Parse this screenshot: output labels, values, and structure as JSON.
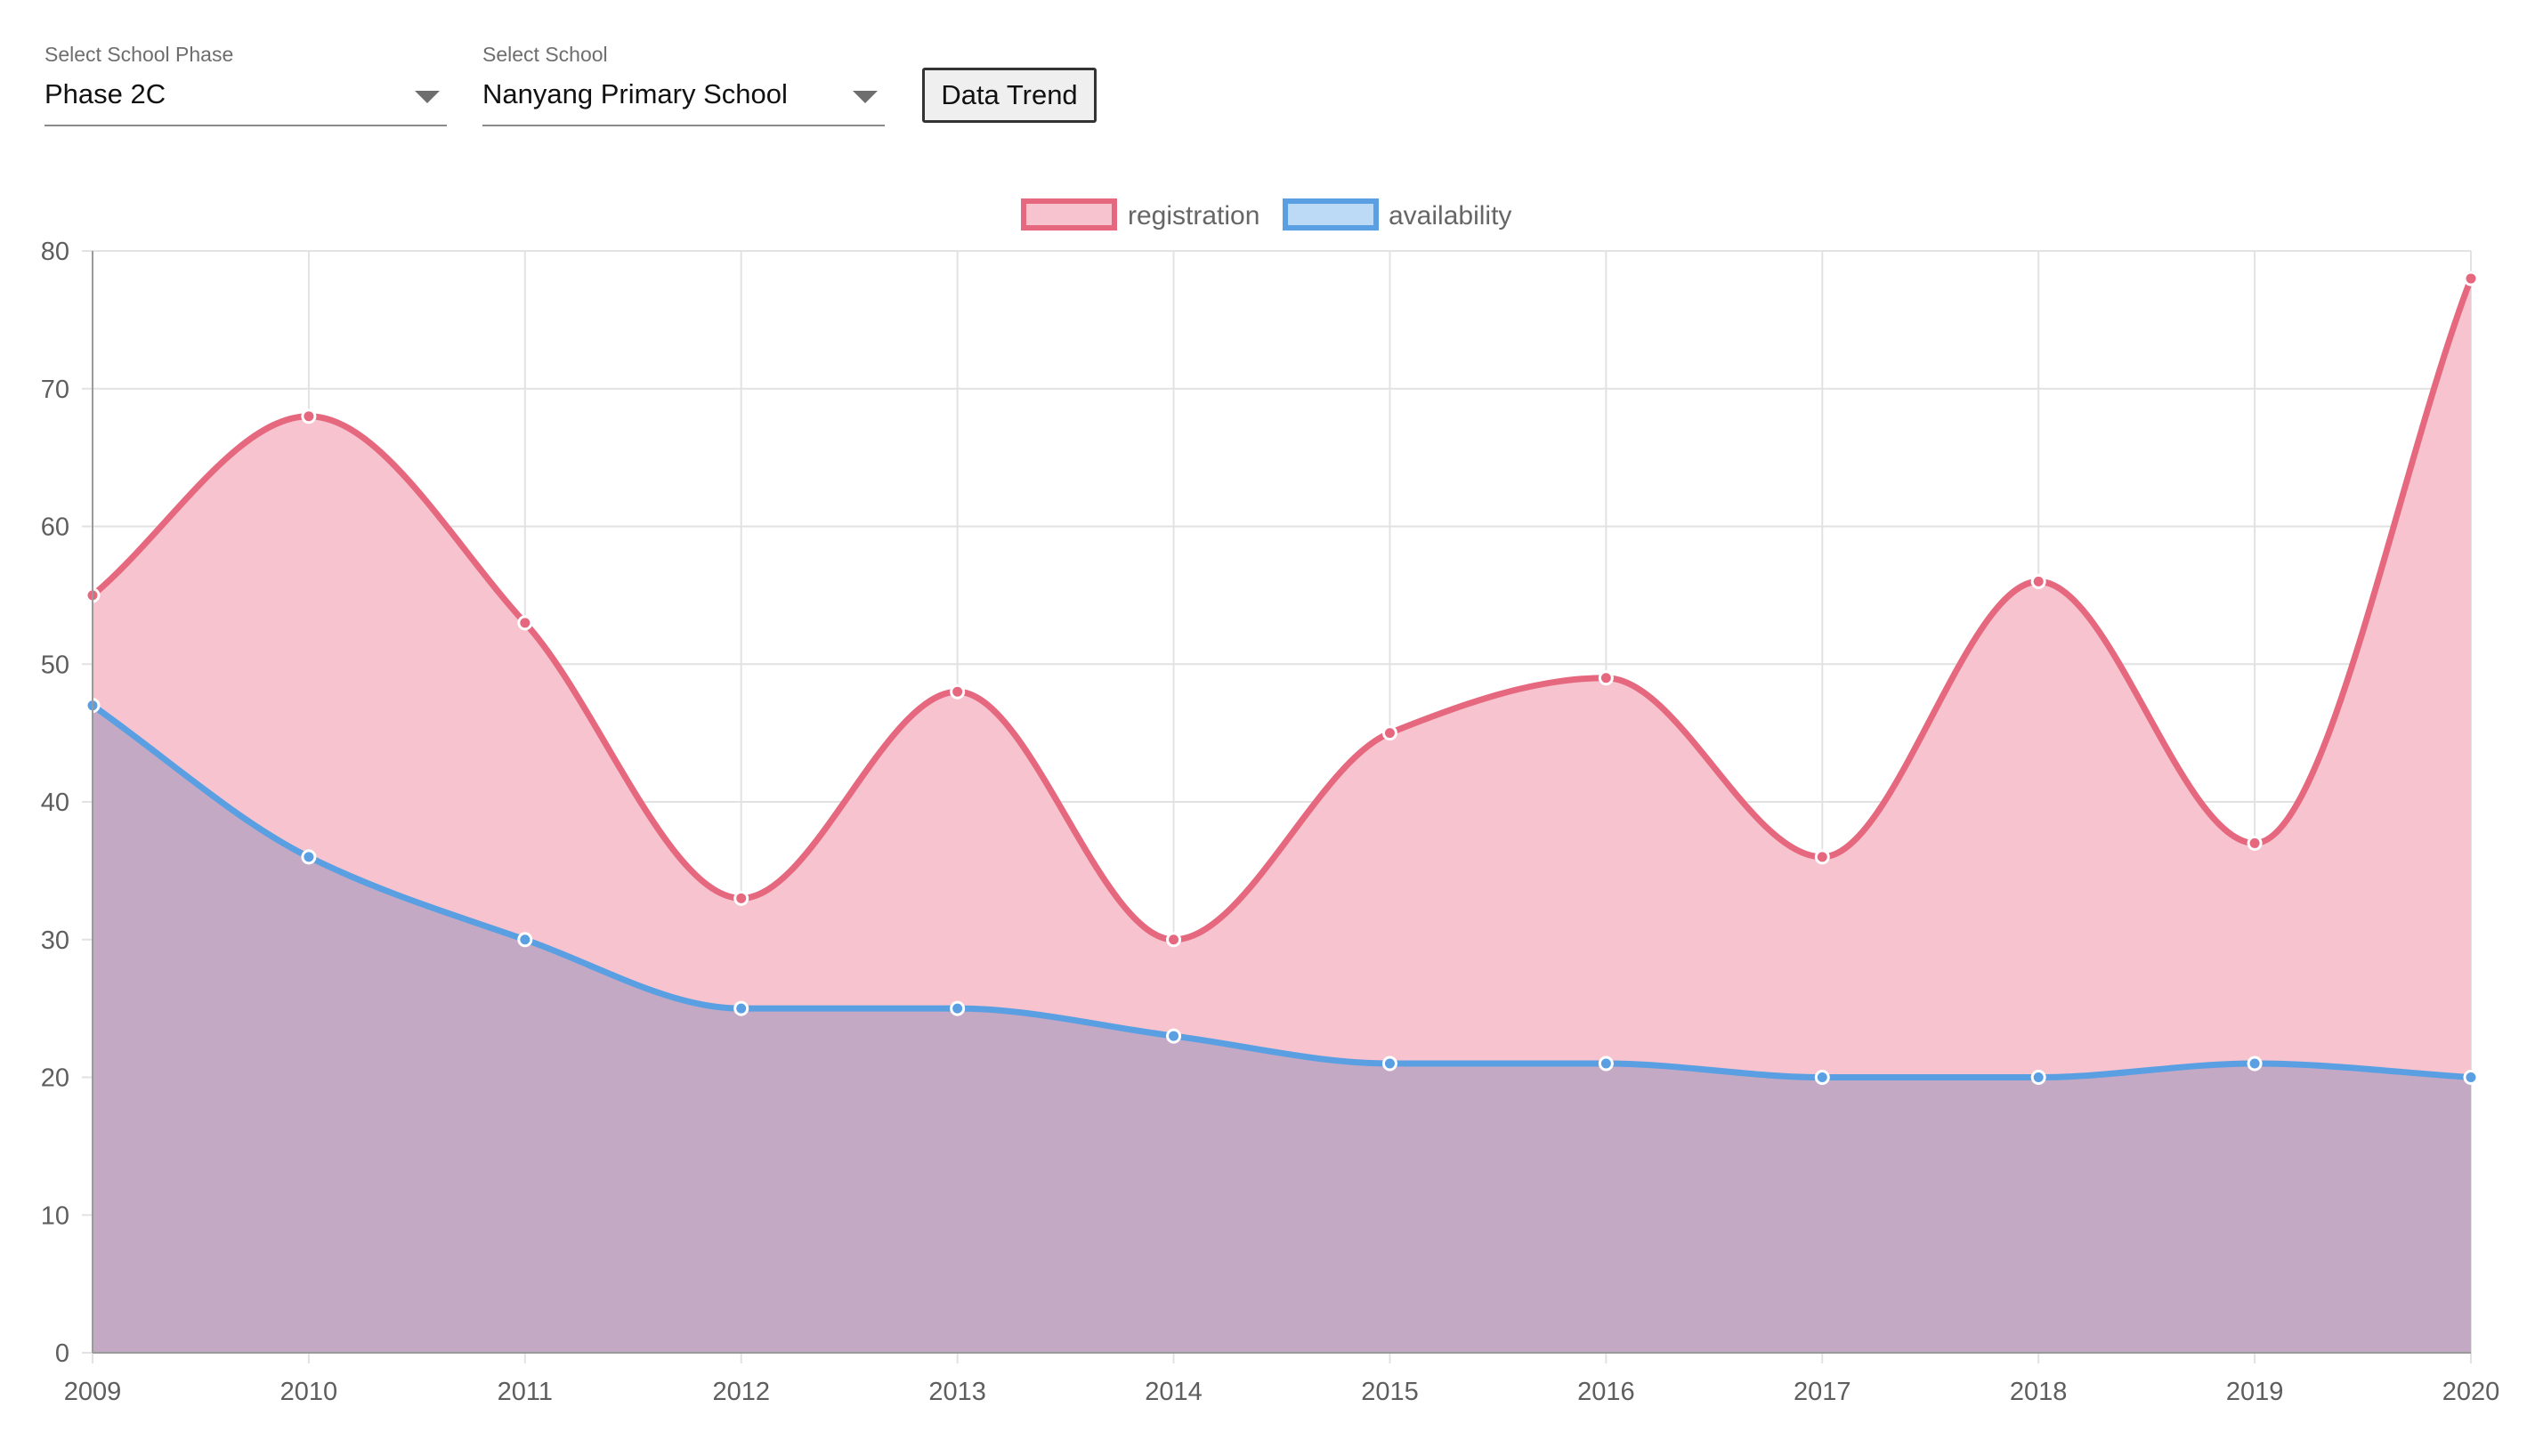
{
  "controls": {
    "phase": {
      "label": "Select School Phase",
      "value": "Phase 2C"
    },
    "school": {
      "label": "Select School",
      "value": "Nanyang Primary School"
    },
    "trend_button": "Data Trend"
  },
  "chart_data": {
    "type": "area",
    "x": [
      "2009",
      "2010",
      "2011",
      "2012",
      "2013",
      "2014",
      "2015",
      "2016",
      "2017",
      "2018",
      "2019",
      "2020"
    ],
    "series": [
      {
        "name": "registration",
        "values": [
          55,
          68,
          53,
          33,
          48,
          30,
          45,
          49,
          36,
          56,
          37,
          78
        ],
        "line_color": "#e5687f",
        "fill_color": "#f6c3ce"
      },
      {
        "name": "availability",
        "values": [
          47,
          36,
          30,
          25,
          25,
          23,
          21,
          21,
          20,
          20,
          21,
          20
        ],
        "line_color": "#5b9fe3",
        "fill_color": "#c4a9c4"
      }
    ],
    "ylim": [
      0,
      80
    ],
    "yticks": [
      0,
      10,
      20,
      30,
      40,
      50,
      60,
      70,
      80
    ],
    "grid": true,
    "legend": "top-center"
  }
}
